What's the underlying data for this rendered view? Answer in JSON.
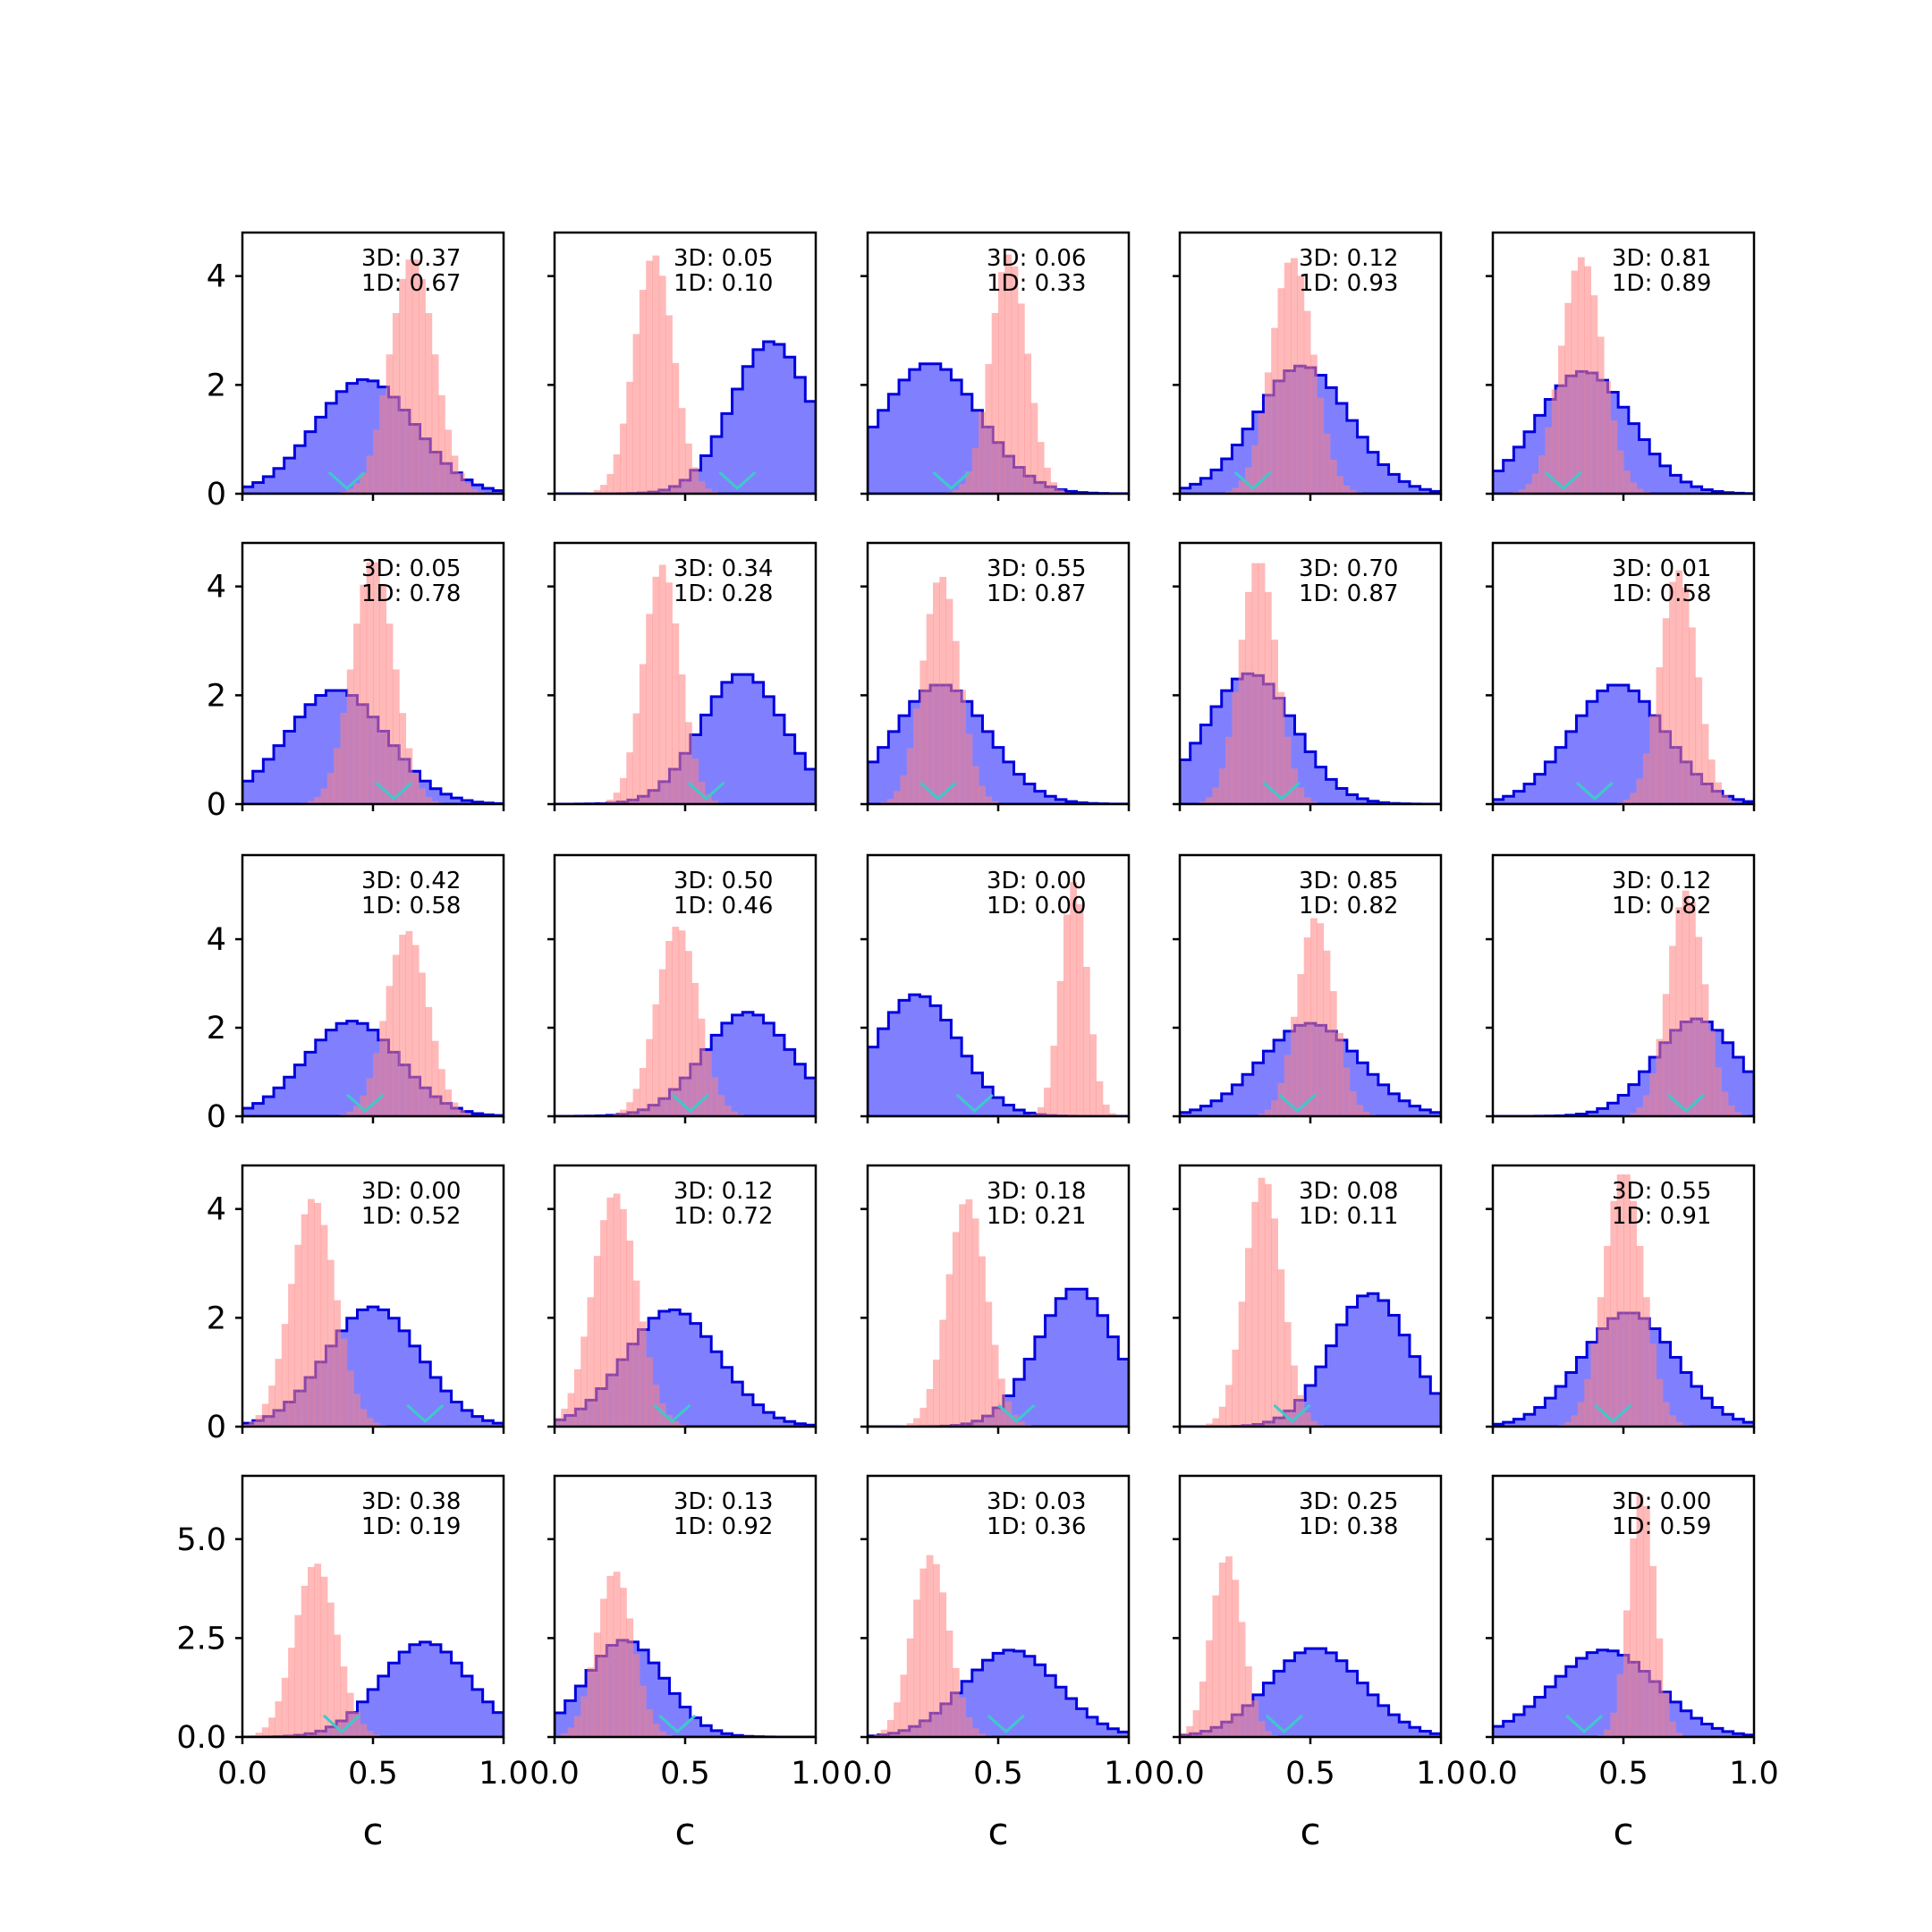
{
  "colors": {
    "dist_3d": "#0000dd",
    "dist_3d_fill": "#8080ff",
    "dist_1d": "#ff7f7f",
    "marker": "#3ec9c9",
    "axes": "#000000"
  },
  "x_tick_labels": [
    "0.0",
    "0.5",
    "1.0"
  ],
  "xlabel": "c",
  "row_y_ticks": [
    {
      "values": [
        0,
        2,
        4
      ],
      "labels": [
        "0",
        "2",
        "4"
      ]
    },
    {
      "values": [
        0,
        2,
        4
      ],
      "labels": [
        "0",
        "2",
        "4"
      ]
    },
    {
      "values": [
        0,
        2,
        4
      ],
      "labels": [
        "0",
        "2",
        "4"
      ]
    },
    {
      "values": [
        0,
        2,
        4
      ],
      "labels": [
        "0",
        "2",
        "4"
      ]
    },
    {
      "values": [
        0.0,
        2.5,
        5.0
      ],
      "labels": [
        "0.0",
        "2.5",
        "5.0"
      ]
    }
  ],
  "chart_data": {
    "type": "histogram-grid",
    "rows": 5,
    "cols": 5,
    "xlim": [
      0,
      1
    ],
    "row_ylim": [
      [
        0,
        4.8
      ],
      [
        0,
        4.8
      ],
      [
        0,
        5.9
      ],
      [
        0,
        4.8
      ],
      [
        0,
        6.6
      ]
    ],
    "series_styles": {
      "3D": "step histogram, blue outline with translucent blue fill",
      "1D": "filled histogram, translucent red"
    },
    "panels": [
      {
        "ann1": "3D: 0.37",
        "ann2": "1D: 0.67",
        "b_mu": 0.47,
        "b_sd": 0.19,
        "b_peak": 2.1,
        "r_mu": 0.65,
        "r_sd": 0.085,
        "r_peak": 4.35,
        "marker": 0.4
      },
      {
        "ann1": "3D: 0.05",
        "ann2": "1D: 0.10",
        "b_mu": 0.83,
        "b_sd": 0.15,
        "b_peak": 2.8,
        "r_mu": 0.38,
        "r_sd": 0.075,
        "r_peak": 4.4,
        "marker": 0.7
      },
      {
        "ann1": "3D: 0.06",
        "ann2": "1D: 0.33",
        "b_mu": 0.24,
        "b_sd": 0.19,
        "b_peak": 2.4,
        "r_mu": 0.54,
        "r_sd": 0.07,
        "r_peak": 4.4,
        "marker": 0.32
      },
      {
        "ann1": "3D: 0.12",
        "ann2": "1D: 0.93",
        "b_mu": 0.47,
        "b_sd": 0.18,
        "b_peak": 2.35,
        "r_mu": 0.43,
        "r_sd": 0.08,
        "r_peak": 4.35,
        "marker": 0.28
      },
      {
        "ann1": "3D: 0.81",
        "ann2": "1D: 0.89",
        "b_mu": 0.35,
        "b_sd": 0.18,
        "b_peak": 2.25,
        "r_mu": 0.34,
        "r_sd": 0.08,
        "r_peak": 4.35,
        "marker": 0.27
      },
      {
        "ann1": "3D: 0.05",
        "ann2": "1D: 0.78",
        "b_mu": 0.36,
        "b_sd": 0.19,
        "b_peak": 2.1,
        "r_mu": 0.5,
        "r_sd": 0.08,
        "r_peak": 4.5,
        "marker": 0.58
      },
      {
        "ann1": "3D: 0.34",
        "ann2": "1D: 0.28",
        "b_mu": 0.72,
        "b_sd": 0.16,
        "b_peak": 2.4,
        "r_mu": 0.41,
        "r_sd": 0.07,
        "r_peak": 4.4,
        "marker": 0.58
      },
      {
        "ann1": "3D: 0.55",
        "ann2": "1D: 0.87",
        "b_mu": 0.28,
        "b_sd": 0.18,
        "b_peak": 2.2,
        "r_mu": 0.28,
        "r_sd": 0.07,
        "r_peak": 4.2,
        "marker": 0.27
      },
      {
        "ann1": "3D: 0.70",
        "ann2": "1D: 0.87",
        "b_mu": 0.27,
        "b_sd": 0.17,
        "b_peak": 2.4,
        "r_mu": 0.3,
        "r_sd": 0.07,
        "r_peak": 4.5,
        "marker": 0.39
      },
      {
        "ann1": "3D: 0.01",
        "ann2": "1D: 0.58",
        "b_mu": 0.48,
        "b_sd": 0.18,
        "b_peak": 2.2,
        "r_mu": 0.71,
        "r_sd": 0.07,
        "r_peak": 4.3,
        "marker": 0.39
      },
      {
        "ann1": "3D: 0.42",
        "ann2": "1D: 0.58",
        "b_mu": 0.42,
        "b_sd": 0.18,
        "b_peak": 2.15,
        "r_mu": 0.63,
        "r_sd": 0.08,
        "r_peak": 4.2,
        "marker": 0.47
      },
      {
        "ann1": "3D: 0.50",
        "ann2": "1D: 0.46",
        "b_mu": 0.74,
        "b_sd": 0.17,
        "b_peak": 2.35,
        "r_mu": 0.47,
        "r_sd": 0.08,
        "r_peak": 4.3,
        "marker": 0.52
      },
      {
        "ann1": "3D: 0.00",
        "ann2": "1D: 0.00",
        "b_mu": 0.19,
        "b_sd": 0.16,
        "b_peak": 2.75,
        "r_mu": 0.79,
        "r_sd": 0.05,
        "r_peak": 5.3,
        "marker": 0.41
      },
      {
        "ann1": "3D: 0.85",
        "ann2": "1D: 0.82",
        "b_mu": 0.5,
        "b_sd": 0.19,
        "b_peak": 2.1,
        "r_mu": 0.52,
        "r_sd": 0.07,
        "r_peak": 4.5,
        "marker": 0.45
      },
      {
        "ann1": "3D: 0.12",
        "ann2": "1D: 0.82",
        "b_mu": 0.78,
        "b_sd": 0.16,
        "b_peak": 2.2,
        "r_mu": 0.74,
        "r_sd": 0.07,
        "r_peak": 5.1,
        "marker": 0.74
      },
      {
        "ann1": "3D: 0.00",
        "ann2": "1D: 0.52",
        "b_mu": 0.5,
        "b_sd": 0.18,
        "b_peak": 2.2,
        "r_mu": 0.27,
        "r_sd": 0.085,
        "r_peak": 4.2,
        "marker": 0.7
      },
      {
        "ann1": "3D: 0.12",
        "ann2": "1D: 0.72",
        "b_mu": 0.45,
        "b_sd": 0.18,
        "b_peak": 2.15,
        "r_mu": 0.23,
        "r_sd": 0.085,
        "r_peak": 4.3,
        "marker": 0.45
      },
      {
        "ann1": "3D: 0.18",
        "ann2": "1D: 0.21",
        "b_mu": 0.8,
        "b_sd": 0.15,
        "b_peak": 2.55,
        "r_mu": 0.38,
        "r_sd": 0.075,
        "r_peak": 4.2,
        "marker": 0.57
      },
      {
        "ann1": "3D: 0.08",
        "ann2": "1D: 0.11",
        "b_mu": 0.73,
        "b_sd": 0.15,
        "b_peak": 2.45,
        "r_mu": 0.32,
        "r_sd": 0.07,
        "r_peak": 4.6,
        "marker": 0.43
      },
      {
        "ann1": "3D: 0.55",
        "ann2": "1D: 0.91",
        "b_mu": 0.52,
        "b_sd": 0.18,
        "b_peak": 2.1,
        "r_mu": 0.5,
        "r_sd": 0.075,
        "r_peak": 4.7,
        "marker": 0.46
      },
      {
        "ann1": "3D: 0.38",
        "ann2": "1D: 0.19",
        "b_mu": 0.7,
        "b_sd": 0.17,
        "b_peak": 2.4,
        "r_mu": 0.28,
        "r_sd": 0.08,
        "r_peak": 4.4,
        "marker": 0.38
      },
      {
        "ann1": "3D: 0.13",
        "ann2": "1D: 0.92",
        "b_mu": 0.27,
        "b_sd": 0.15,
        "b_peak": 2.45,
        "r_mu": 0.23,
        "r_sd": 0.07,
        "r_peak": 4.2,
        "marker": 0.47
      },
      {
        "ann1": "3D: 0.03",
        "ann2": "1D: 0.36",
        "b_mu": 0.55,
        "b_sd": 0.18,
        "b_peak": 2.2,
        "r_mu": 0.24,
        "r_sd": 0.07,
        "r_peak": 4.6,
        "marker": 0.53
      },
      {
        "ann1": "3D: 0.25",
        "ann2": "1D: 0.38",
        "b_mu": 0.52,
        "b_sd": 0.18,
        "b_peak": 2.25,
        "r_mu": 0.18,
        "r_sd": 0.06,
        "r_peak": 4.6,
        "marker": 0.4
      },
      {
        "ann1": "3D: 0.00",
        "ann2": "1D: 0.59",
        "b_mu": 0.43,
        "b_sd": 0.2,
        "b_peak": 2.2,
        "r_mu": 0.57,
        "r_sd": 0.05,
        "r_peak": 6.2,
        "marker": 0.35
      }
    ]
  }
}
